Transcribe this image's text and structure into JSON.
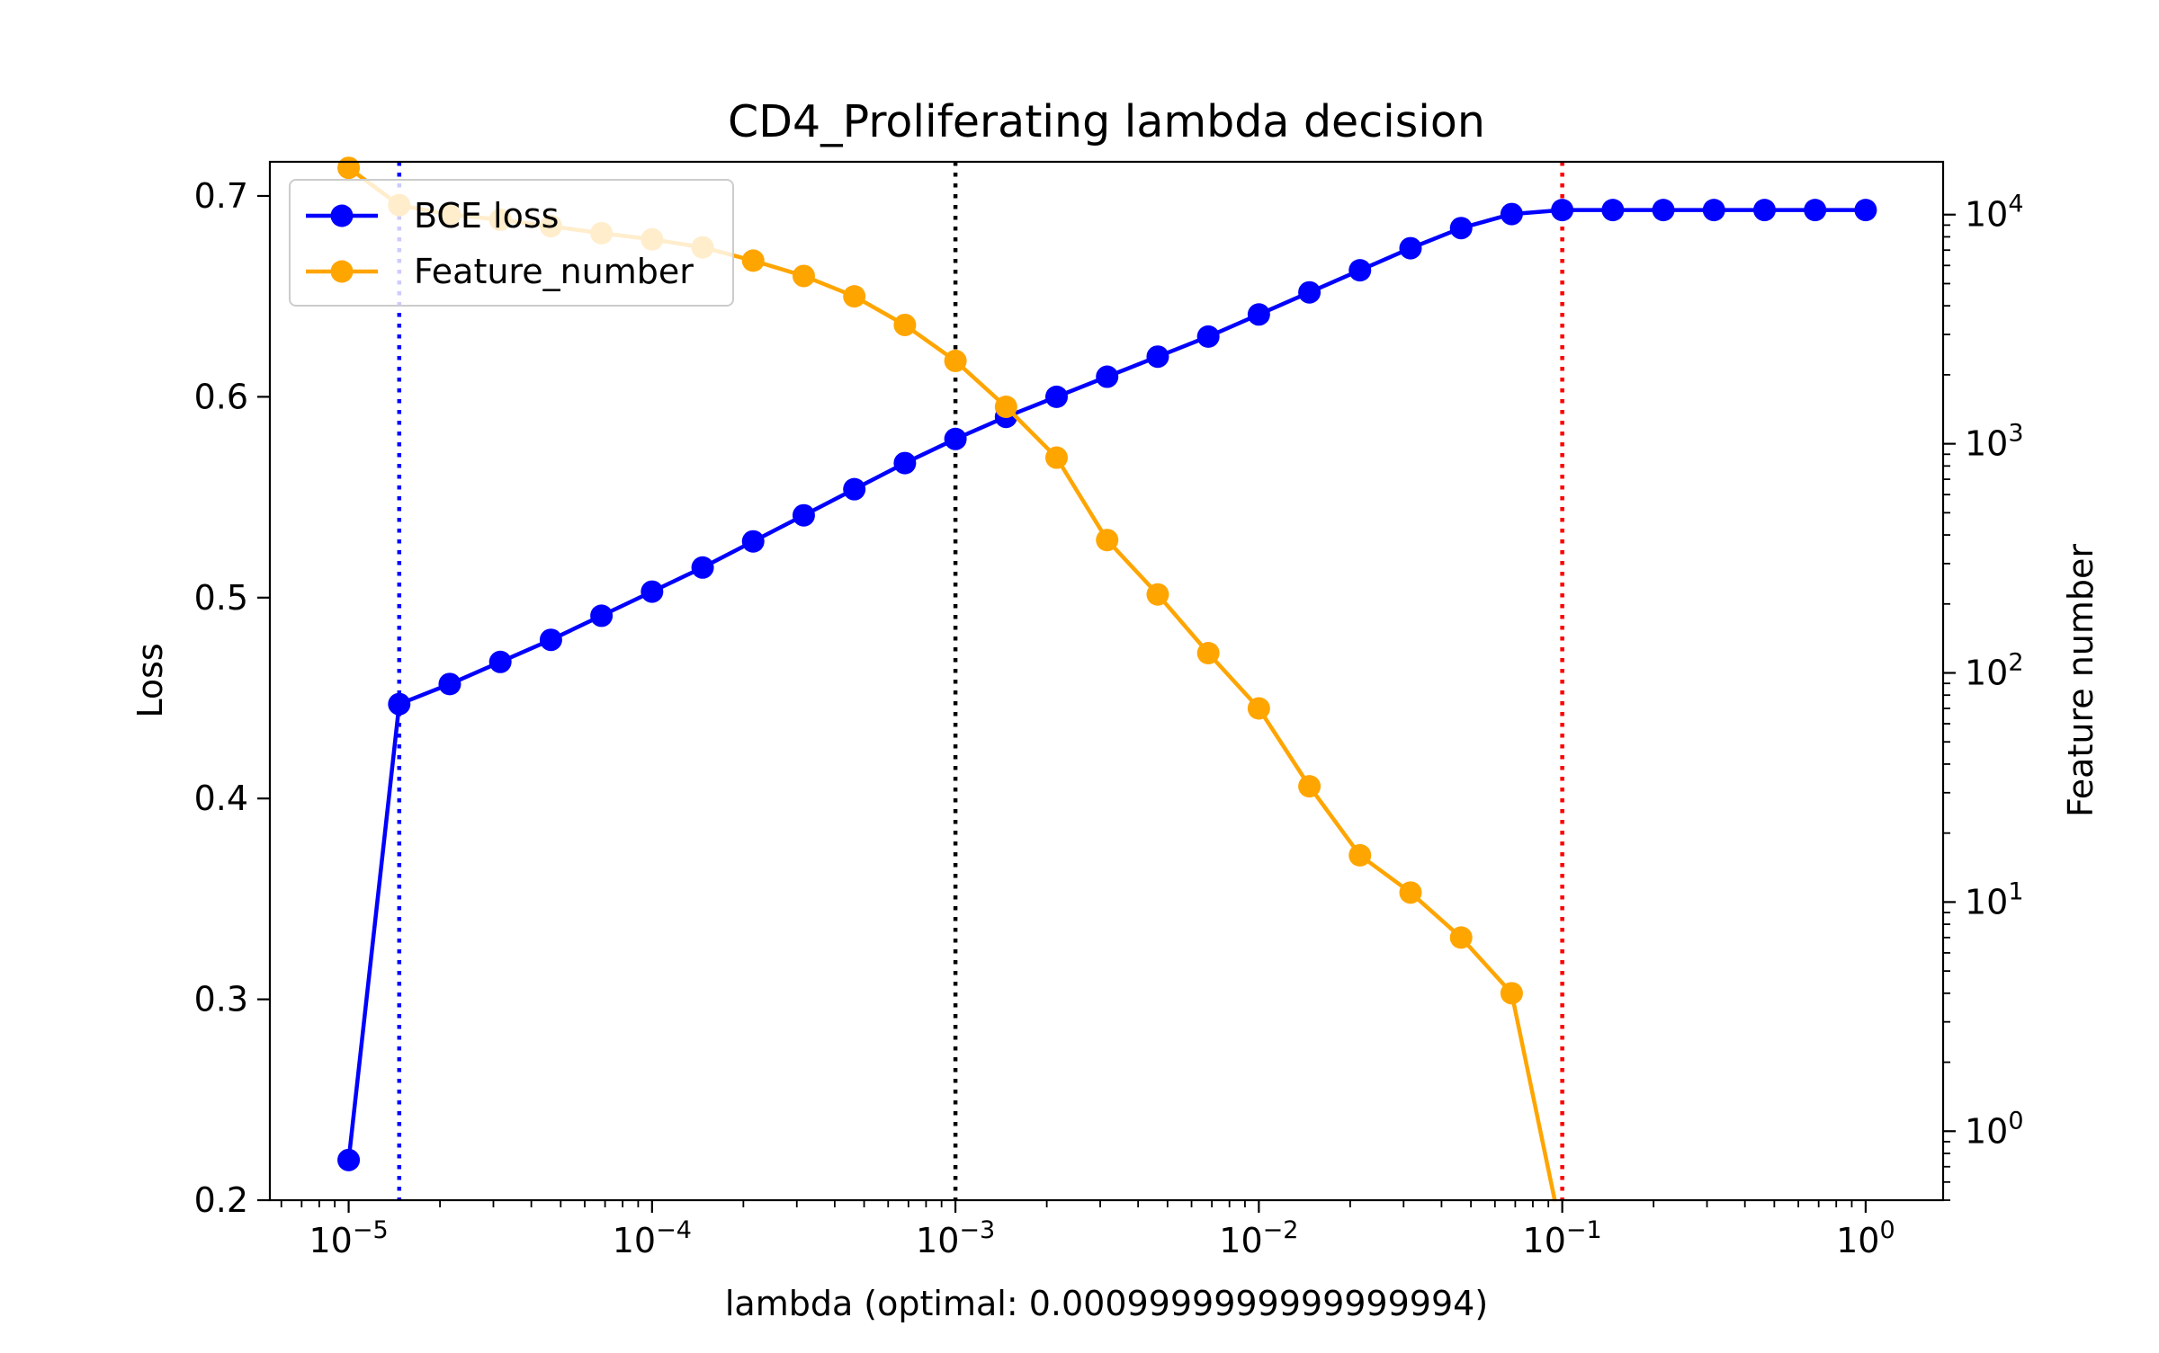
{
  "chart_data": {
    "type": "line",
    "title": "CD4_Proliferating lambda decision",
    "xlabel": "lambda (optimal: 0.0009999999999999994)",
    "ylabel": "Loss",
    "y2label": "Feature number",
    "xscale": "log",
    "y2scale": "log",
    "xlim": [
      5.5e-06,
      1.8
    ],
    "ylim": [
      0.2,
      0.717
    ],
    "y2lim": [
      0.5,
      17000
    ],
    "x_ticks": [
      {
        "value": 1e-05,
        "base": "10",
        "exp": "−5"
      },
      {
        "value": 0.0001,
        "base": "10",
        "exp": "−4"
      },
      {
        "value": 0.001,
        "base": "10",
        "exp": "−3"
      },
      {
        "value": 0.01,
        "base": "10",
        "exp": "−2"
      },
      {
        "value": 0.1,
        "base": "10",
        "exp": "−1"
      },
      {
        "value": 1,
        "base": "10",
        "exp": "0"
      }
    ],
    "y_ticks": [
      "0.2",
      "0.3",
      "0.4",
      "0.5",
      "0.6",
      "0.7"
    ],
    "y2_ticks": [
      {
        "value": 1,
        "base": "10",
        "exp": "0"
      },
      {
        "value": 10,
        "base": "10",
        "exp": "1"
      },
      {
        "value": 100,
        "base": "10",
        "exp": "2"
      },
      {
        "value": 1000,
        "base": "10",
        "exp": "3"
      },
      {
        "value": 10000,
        "base": "10",
        "exp": "4"
      }
    ],
    "x": [
      1e-05,
      1.468e-05,
      2.154e-05,
      3.162e-05,
      4.642e-05,
      6.813e-05,
      0.0001,
      0.0001468,
      0.0002154,
      0.0003162,
      0.0004642,
      0.0006813,
      0.001,
      0.001468,
      0.002154,
      0.003162,
      0.004642,
      0.006813,
      0.01,
      0.01468,
      0.02154,
      0.03162,
      0.04642,
      0.06813,
      0.1,
      0.1468,
      0.2154,
      0.3162,
      0.4642,
      0.6813,
      1
    ],
    "series": [
      {
        "name": "BCE loss",
        "axis": "left",
        "color": "#0000ff",
        "values": [
          0.22,
          0.447,
          0.457,
          0.468,
          0.479,
          0.491,
          0.503,
          0.515,
          0.528,
          0.541,
          0.554,
          0.567,
          0.579,
          0.59,
          0.6,
          0.61,
          0.62,
          0.63,
          0.641,
          0.652,
          0.663,
          0.674,
          0.684,
          0.691,
          0.693,
          0.693,
          0.693,
          0.693,
          0.693,
          0.693,
          0.693
        ]
      },
      {
        "name": "Feature_number",
        "axis": "right",
        "color": "#ffa500",
        "values": [
          16000,
          11000,
          10000,
          9500,
          8900,
          8300,
          7800,
          7200,
          6300,
          5400,
          4400,
          3300,
          2300,
          1450,
          870,
          380,
          220,
          122,
          70,
          32,
          16,
          11,
          7,
          4,
          0,
          null,
          null,
          null,
          null,
          null,
          null
        ]
      }
    ],
    "vlines": [
      {
        "x": 1.468e-05,
        "color": "#0000ff",
        "style": "dotted"
      },
      {
        "x": 0.001,
        "color": "#000000",
        "style": "dotted"
      },
      {
        "x": 0.1,
        "color": "#ff0000",
        "style": "dotted"
      }
    ],
    "legend": {
      "position": "top-left",
      "entries": [
        "BCE loss",
        "Feature_number"
      ]
    },
    "grid": false
  }
}
